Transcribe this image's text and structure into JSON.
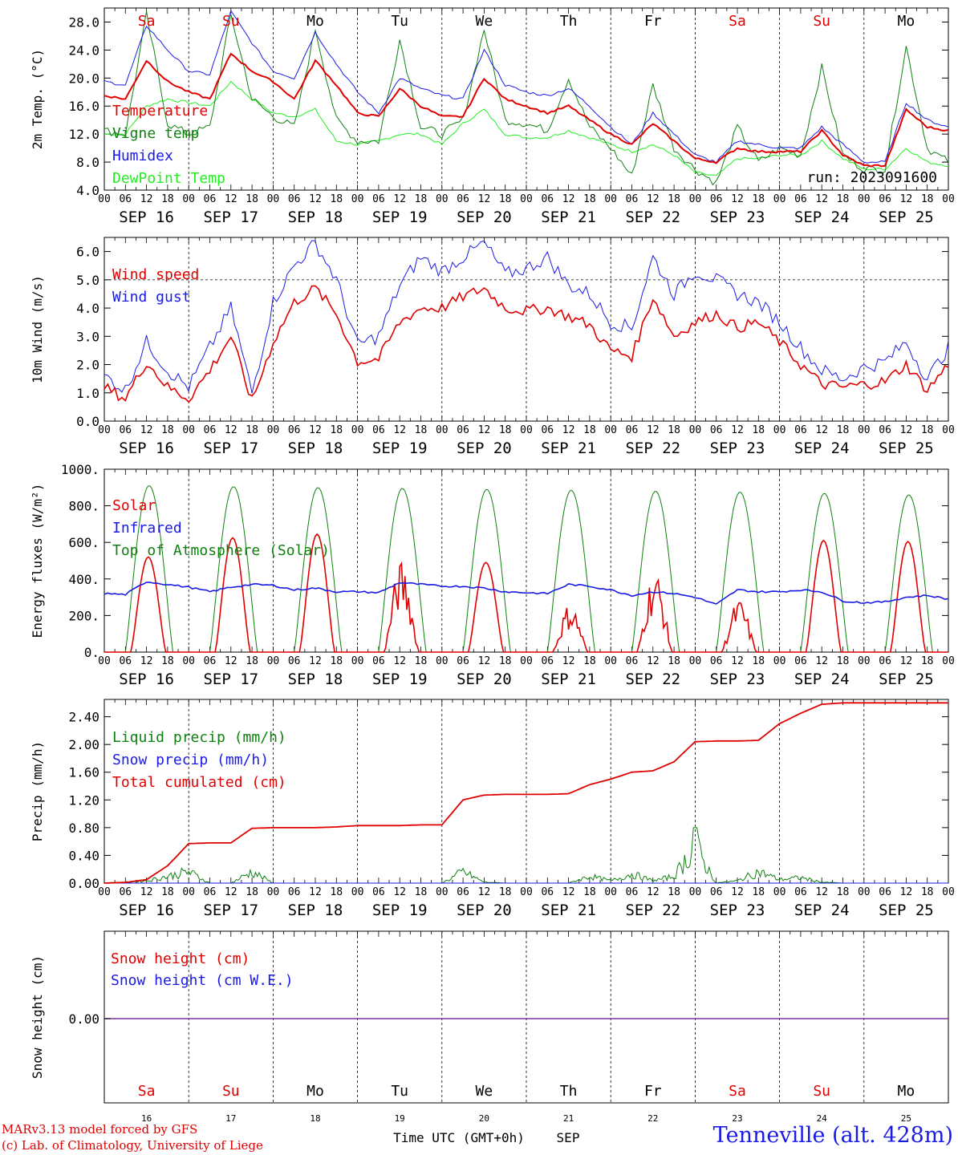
{
  "chart_data": [
    {
      "type": "line",
      "ylabel": "2m Temp. (°C)",
      "ylim": [
        4,
        30
      ],
      "yticks": [
        "4.0",
        "8.0",
        "12.0",
        "16.0",
        "20.0",
        "24.0",
        "28.0"
      ],
      "annotation": "run: 2023091600",
      "x_hours": [
        0,
        6,
        12,
        18,
        24,
        30,
        36,
        42,
        48,
        54,
        60,
        66,
        72,
        78,
        84,
        90,
        96,
        102,
        108,
        114,
        120,
        126,
        132,
        138,
        144,
        150,
        156,
        162,
        168,
        174,
        180,
        186,
        192,
        198,
        204,
        210,
        216,
        222,
        228,
        234,
        240
      ],
      "series": [
        {
          "name": "Temperature",
          "color": "#e00000",
          "values": [
            17.5,
            17,
            22.5,
            19.5,
            18,
            17,
            23.5,
            21,
            19.5,
            17,
            22.5,
            19,
            15,
            14.5,
            18.5,
            16,
            14.5,
            14.5,
            20,
            17,
            16,
            15,
            16,
            14,
            12,
            10.5,
            13.5,
            11,
            8.5,
            8,
            10,
            9.5,
            9.5,
            9.5,
            12.5,
            9,
            7.5,
            7.5,
            15.5,
            13,
            12.5
          ]
        },
        {
          "name": "Vigne temp",
          "color": "#108010",
          "values": [
            12.5,
            12,
            29,
            13.5,
            12,
            13,
            29,
            17,
            14.5,
            13,
            27,
            14,
            11,
            11,
            25.5,
            13,
            12,
            14,
            27,
            14,
            13.5,
            12.5,
            20,
            13,
            10,
            6,
            19,
            10,
            7,
            5,
            13,
            8,
            10,
            9,
            21.5,
            9,
            7,
            7,
            24.5,
            10,
            8
          ]
        },
        {
          "name": "Humidex",
          "color": "#1a1ae6",
          "values": [
            19.5,
            19,
            27.5,
            24,
            21,
            20.5,
            29.5,
            25,
            21,
            20,
            26.5,
            22,
            18,
            15,
            20,
            18.5,
            17.5,
            17,
            24,
            19,
            18,
            17.5,
            18.5,
            16,
            13,
            10.5,
            15,
            12,
            9,
            8,
            11,
            10.5,
            10,
            10,
            13,
            10.5,
            8,
            8,
            16.5,
            14,
            13
          ]
        },
        {
          "name": "DewPoint Temp",
          "color": "#22ee22",
          "values": [
            12,
            12,
            16,
            17,
            16.5,
            16,
            19.5,
            17,
            15,
            14.5,
            15.5,
            11,
            10.5,
            11,
            12,
            12,
            10.5,
            13.5,
            15.5,
            12,
            11.5,
            11.5,
            12.5,
            11.5,
            10.5,
            9.5,
            10.5,
            9,
            6.5,
            6,
            8.5,
            8.5,
            9,
            9,
            11,
            8.5,
            7,
            7,
            10,
            8,
            7.5
          ]
        }
      ]
    },
    {
      "type": "line",
      "ylabel": "10m Wind (m/s)",
      "ylim": [
        0,
        6.5
      ],
      "yticks": [
        "0.0",
        "1.0",
        "2.0",
        "3.0",
        "4.0",
        "5.0",
        "6.0"
      ],
      "reference_line": 5.0,
      "x_hours": [
        0,
        6,
        12,
        18,
        24,
        30,
        36,
        42,
        48,
        54,
        60,
        66,
        72,
        78,
        84,
        90,
        96,
        102,
        108,
        114,
        120,
        126,
        132,
        138,
        144,
        150,
        156,
        162,
        168,
        174,
        180,
        186,
        192,
        198,
        204,
        210,
        216,
        222,
        228,
        234,
        240
      ],
      "series": [
        {
          "name": "Wind speed",
          "color": "#e00000",
          "values": [
            1.2,
            0.8,
            2.1,
            1.2,
            0.8,
            1.8,
            3,
            0.7,
            2.8,
            4.2,
            4.7,
            3.8,
            2.1,
            2.2,
            3.5,
            4,
            4,
            4.4,
            4.7,
            4,
            3.9,
            4,
            3.7,
            3.4,
            2.5,
            2.3,
            4.4,
            3,
            3.5,
            3.8,
            3.3,
            3.5,
            2.8,
            2,
            1.3,
            1.2,
            1.3,
            1.4,
            2,
            1.1,
            2
          ]
        },
        {
          "name": "Wind gust",
          "color": "#1a1ae6",
          "values": [
            1.6,
            1.1,
            2.8,
            1.8,
            1.2,
            2.6,
            4,
            1,
            4.2,
            5.5,
            6.3,
            5,
            2.7,
            3,
            4.8,
            5.8,
            5.3,
            5.8,
            6.3,
            5.2,
            5.4,
            5.8,
            4.8,
            4.5,
            3.5,
            3.3,
            5.8,
            4.5,
            5.3,
            5,
            4.5,
            4.2,
            3.5,
            2.6,
            1.8,
            1.5,
            1.9,
            2.1,
            2.8,
            1.5,
            2.6
          ]
        }
      ]
    },
    {
      "type": "line",
      "ylabel": "Energy fluxes (W/m²)",
      "ylim": [
        0,
        1000
      ],
      "yticks": [
        "0.",
        "200.",
        "400.",
        "600.",
        "800.",
        "1000."
      ],
      "x_hours": [
        0,
        6,
        12,
        18,
        24,
        30,
        36,
        42,
        48,
        54,
        60,
        66,
        72,
        78,
        84,
        90,
        96,
        102,
        108,
        114,
        120,
        126,
        132,
        138,
        144,
        150,
        156,
        162,
        168,
        174,
        180,
        186,
        192,
        198,
        204,
        210,
        216,
        222,
        228,
        234,
        240
      ],
      "series": [
        {
          "name": "Solar",
          "color": "#e00000",
          "daily_peak": [
            520,
            625,
            645,
            500,
            490,
            270,
            450,
            290,
            610,
            605
          ]
        },
        {
          "name": "Infrared",
          "color": "#1a1ae6",
          "values": [
            320,
            315,
            385,
            370,
            355,
            330,
            355,
            370,
            365,
            340,
            350,
            330,
            330,
            325,
            380,
            370,
            360,
            360,
            350,
            330,
            325,
            320,
            370,
            360,
            340,
            310,
            330,
            320,
            300,
            260,
            340,
            330,
            330,
            340,
            330,
            280,
            270,
            275,
            300,
            310,
            290
          ]
        },
        {
          "name": "Top of Atmosphere (Solar)",
          "color": "#108010",
          "daily_peak": [
            910,
            905,
            900,
            895,
            890,
            885,
            880,
            875,
            868,
            860
          ]
        }
      ]
    },
    {
      "type": "line",
      "ylabel": "Precip (mm/h)",
      "ylim": [
        0,
        2.65
      ],
      "yticks": [
        "0.00",
        "0.40",
        "0.80",
        "1.20",
        "1.60",
        "2.00",
        "2.40"
      ],
      "x_hours": [
        0,
        6,
        12,
        18,
        24,
        30,
        36,
        42,
        48,
        54,
        60,
        66,
        72,
        78,
        84,
        90,
        96,
        102,
        108,
        114,
        120,
        126,
        132,
        138,
        144,
        150,
        156,
        162,
        168,
        174,
        180,
        186,
        192,
        198,
        204,
        210,
        216,
        222,
        228,
        234,
        240
      ],
      "series": [
        {
          "name": "Liquid precip (mm/h)",
          "color": "#108010",
          "values": [
            0,
            0.02,
            0.05,
            0.15,
            0.25,
            0,
            0,
            0.25,
            0,
            0,
            0,
            0,
            0,
            0,
            0,
            0,
            0,
            0.25,
            0.02,
            0,
            0,
            0,
            0,
            0.15,
            0.05,
            0.2,
            0.05,
            0.15,
            0.8,
            0,
            0.05,
            0.25,
            0.08,
            0.12,
            0.02,
            0,
            0,
            0,
            0,
            0,
            0
          ]
        },
        {
          "name": "Snow precip (mm/h)",
          "color": "#1a1ae6",
          "values": [
            0,
            0,
            0,
            0,
            0,
            0,
            0,
            0,
            0,
            0,
            0,
            0,
            0,
            0,
            0,
            0,
            0,
            0,
            0,
            0,
            0,
            0,
            0,
            0,
            0,
            0,
            0,
            0,
            0,
            0,
            0,
            0,
            0,
            0,
            0,
            0,
            0,
            0,
            0,
            0,
            0
          ]
        },
        {
          "name": "Total cumulated (cm)",
          "color": "#e00000",
          "values": [
            0,
            0.01,
            0.05,
            0.25,
            0.57,
            0.58,
            0.58,
            0.79,
            0.8,
            0.8,
            0.8,
            0.81,
            0.83,
            0.83,
            0.83,
            0.84,
            0.84,
            1.2,
            1.27,
            1.28,
            1.28,
            1.28,
            1.29,
            1.42,
            1.5,
            1.6,
            1.62,
            1.75,
            2.04,
            2.05,
            2.05,
            2.06,
            2.3,
            2.45,
            2.58,
            2.6,
            2.6,
            2.6,
            2.6,
            2.6,
            2.6
          ]
        }
      ]
    },
    {
      "type": "line",
      "ylabel": "Snow height (cm)",
      "yticks": [
        "0.00"
      ],
      "series": [
        {
          "name": "Snow height (cm)",
          "color": "#e00000",
          "values": [
            0
          ]
        },
        {
          "name": "Snow height (cm W.E.)",
          "color": "#1a1ae6",
          "values": [
            0
          ]
        }
      ]
    }
  ],
  "x_axis": {
    "hour_ticks": [
      "00",
      "06",
      "12",
      "18"
    ],
    "end_tick": "00",
    "dates": [
      "SEP 16",
      "SEP 17",
      "SEP 18",
      "SEP 19",
      "SEP 20",
      "SEP 21",
      "SEP 22",
      "SEP 23",
      "SEP 24",
      "SEP 25"
    ],
    "weekdays": [
      "Sa",
      "Su",
      "Mo",
      "Tu",
      "We",
      "Th",
      "Fr",
      "Sa",
      "Su",
      "Mo"
    ],
    "weekday_colors": [
      "#e00000",
      "#e00000",
      "#000000",
      "#000000",
      "#000000",
      "#000000",
      "#000000",
      "#e00000",
      "#e00000",
      "#000000"
    ],
    "day_numbers": [
      "16",
      "17",
      "18",
      "19",
      "20",
      "21",
      "22",
      "23",
      "24",
      "25"
    ],
    "bottom_label": "Time UTC (GMT+0h)",
    "month_label": "SEP"
  },
  "footer": {
    "credit_line1": "MARv3.13 model forced by GFS",
    "credit_line2": "(c) Lab. of Climatology, University of Liege",
    "station": "Tenneville (alt. 428m)"
  }
}
